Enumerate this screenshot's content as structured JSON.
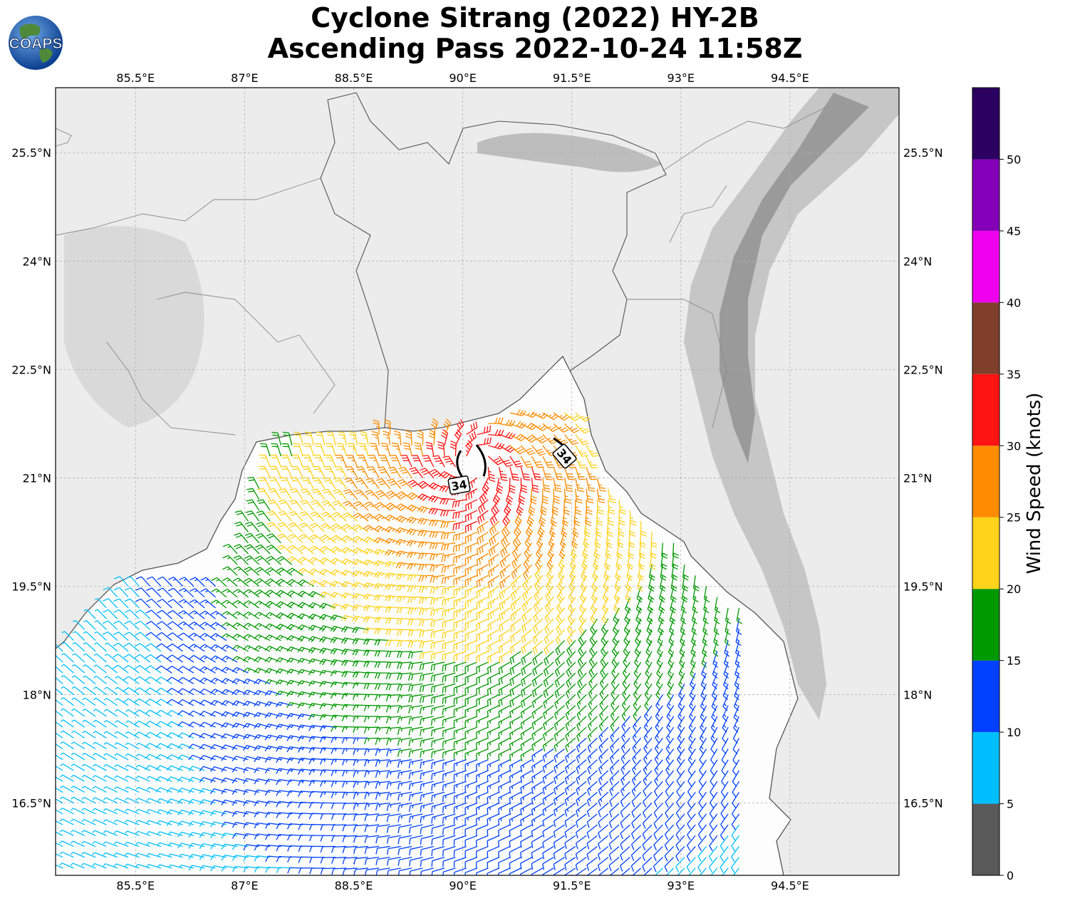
{
  "title": {
    "line1": "Cyclone Sitrang (2022) HY-2B",
    "line2": "Ascending Pass 2022-10-24 11:58Z"
  },
  "logo": {
    "text": "COAPS"
  },
  "map": {
    "lon_ticks": [
      "85.5°E",
      "87°E",
      "88.5°E",
      "90°E",
      "91.5°E",
      "93°E",
      "94.5°E"
    ],
    "lat_ticks": [
      "25.5°N",
      "24°N",
      "22.5°N",
      "21°N",
      "19.5°N",
      "18°N",
      "16.5°N"
    ],
    "lon_range": [
      84.4,
      96.0
    ],
    "lat_range": [
      15.5,
      26.4
    ],
    "radii_labels": [
      {
        "text": "34",
        "lon": 89.95,
        "lat": 20.9
      },
      {
        "text": "34",
        "lon": 91.4,
        "lat": 21.3
      }
    ],
    "storm_center": {
      "lon": 90.15,
      "lat": 21.2
    },
    "colors": {
      "land_shade": "#e6e6e6",
      "coast": "#555555",
      "grid": "#b0b0b0"
    }
  },
  "colorbar": {
    "label": "Wind Speed (knots)",
    "ticks": [
      "0",
      "5",
      "10",
      "15",
      "20",
      "25",
      "30",
      "35",
      "40",
      "45",
      "50"
    ],
    "bins": [
      {
        "min": 0,
        "max": 5,
        "color": "#595959"
      },
      {
        "min": 5,
        "max": 10,
        "color": "#00bfff"
      },
      {
        "min": 10,
        "max": 15,
        "color": "#0040ff"
      },
      {
        "min": 15,
        "max": 20,
        "color": "#009900"
      },
      {
        "min": 20,
        "max": 25,
        "color": "#ffd31a"
      },
      {
        "min": 25,
        "max": 30,
        "color": "#ff8c00"
      },
      {
        "min": 30,
        "max": 35,
        "color": "#ff1414"
      },
      {
        "min": 35,
        "max": 40,
        "color": "#7f3f2a"
      },
      {
        "min": 40,
        "max": 45,
        "color": "#ee00ee"
      },
      {
        "min": 45,
        "max": 50,
        "color": "#8400b8"
      },
      {
        "min": 50,
        "max": 55,
        "color": "#2b0060"
      }
    ]
  }
}
